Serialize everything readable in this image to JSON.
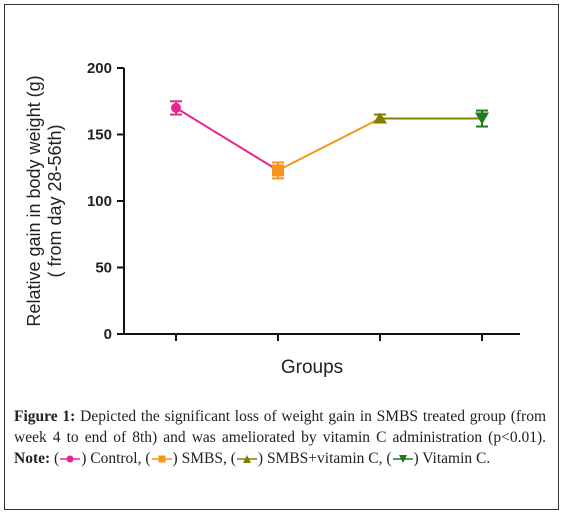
{
  "chart_data": {
    "type": "line",
    "xlabel": "Groups",
    "ylabel": "Relative gain in body weight (g)",
    "ylabel_line2": "( from day 28-56th)",
    "ylim": [
      0,
      200
    ],
    "yticks": [
      "0",
      "50",
      "100",
      "150",
      "200"
    ],
    "x": [
      1,
      2,
      3,
      4
    ],
    "points": [
      {
        "group": "Control",
        "value": 170,
        "err": 5,
        "color": "#e6278f",
        "marker": "circle"
      },
      {
        "group": "SMBS",
        "value": 123,
        "err": 6,
        "color": "#f7941d",
        "marker": "square"
      },
      {
        "group": "SMBS+vitamin C",
        "value": 162,
        "err": 3,
        "color": "#808000",
        "marker": "triangle-up"
      },
      {
        "group": "Vitamin C",
        "value": 162,
        "err": 6,
        "color": "#1f7a1f",
        "marker": "triangle-down"
      }
    ],
    "segment_colors": [
      "#e6278f",
      "#f7941d",
      "#808000"
    ]
  },
  "caption": {
    "figure_label": "Figure 1:",
    "text1": "Depicted the significant loss of weight gain in SMBS treated group (from week 4 to end of 8th) and was ameliorated by vitamin C administration (p<0.01).",
    "note_label": "Note:",
    "legend": [
      {
        "name": "Control,",
        "color": "#e6278f",
        "marker": "circle"
      },
      {
        "name": "SMBS,",
        "color": "#f7941d",
        "marker": "square"
      },
      {
        "name": "SMBS+vitamin C,",
        "color": "#808000",
        "marker": "triangle-up"
      },
      {
        "name": "Vitamin C.",
        "color": "#1f7a1f",
        "marker": "triangle-down"
      }
    ]
  }
}
